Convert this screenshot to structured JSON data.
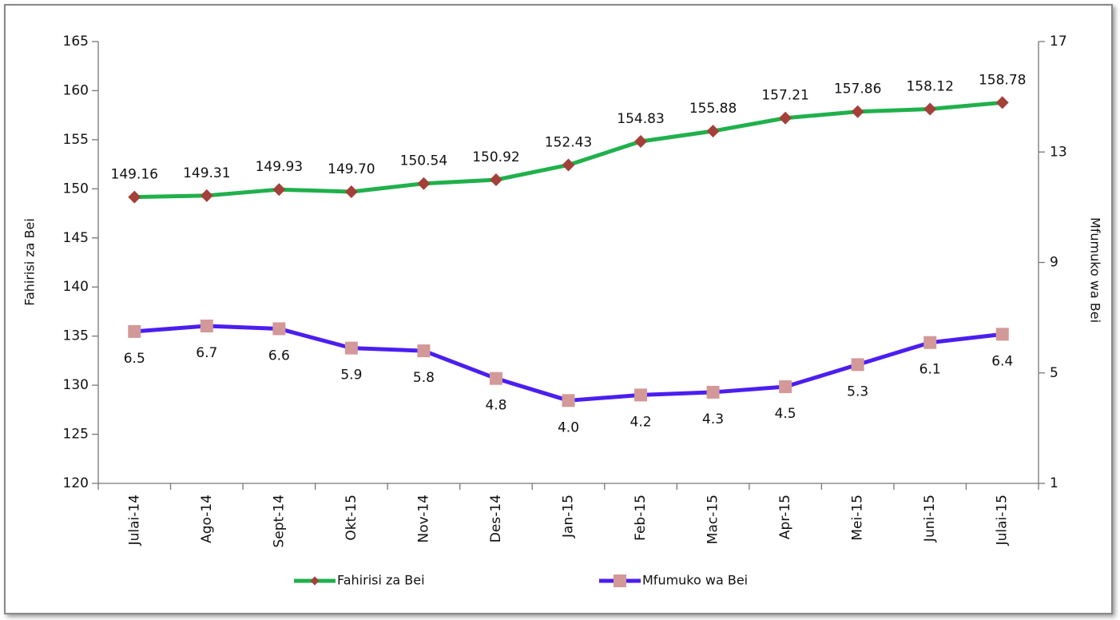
{
  "chart_data": {
    "type": "line",
    "categories": [
      "Julai-14",
      "Ago-14",
      "Sept-14",
      "Okt-15",
      "Nov-14",
      "Des-14",
      "Jan-15",
      "Feb-15",
      "Mac-15",
      "Apr-15",
      "Mei-15",
      "Juni-15",
      "Julai-15"
    ],
    "series": [
      {
        "name": "Fahirisi za Bei",
        "color": "#20b04c",
        "marker": "diamond",
        "marker_color": "#a3403a",
        "label_position": "above",
        "values": [
          149.16,
          149.31,
          149.93,
          149.7,
          150.54,
          150.92,
          152.43,
          154.83,
          155.88,
          157.21,
          157.86,
          158.12,
          158.78
        ],
        "value_labels": [
          "149.16",
          "149.31",
          "149.93",
          "149.70",
          "150.54",
          "150.92",
          "152.43",
          "154.83",
          "155.88",
          "157.21",
          "157.86",
          "158.12",
          "158.78"
        ]
      },
      {
        "name": "Mfumuko wa Bei",
        "color": "#4b1ef0",
        "marker": "square",
        "marker_color": "#d39898",
        "label_position": "below",
        "axis": "y2",
        "values": [
          6.5,
          6.7,
          6.6,
          5.9,
          5.8,
          4.8,
          4.0,
          4.2,
          4.3,
          4.5,
          5.3,
          6.1,
          6.4
        ],
        "value_labels": [
          "6.5",
          "6.7",
          "6.6",
          "5.9",
          "5.8",
          "4.8",
          "4.0",
          "4.2",
          "4.3",
          "4.5",
          "5.3",
          "6.1",
          "6.4"
        ]
      }
    ],
    "y_label": "Fahirisi za Bei",
    "y2_label": "Mfumuko wa Bei",
    "ylim": [
      120,
      165
    ],
    "yticks": [
      120,
      125,
      130,
      135,
      140,
      145,
      150,
      155,
      160,
      165
    ],
    "y2lim": [
      1,
      17
    ],
    "y2ticks": [
      1,
      5,
      9,
      13,
      17
    ],
    "grid": false,
    "legend": "bottom"
  }
}
